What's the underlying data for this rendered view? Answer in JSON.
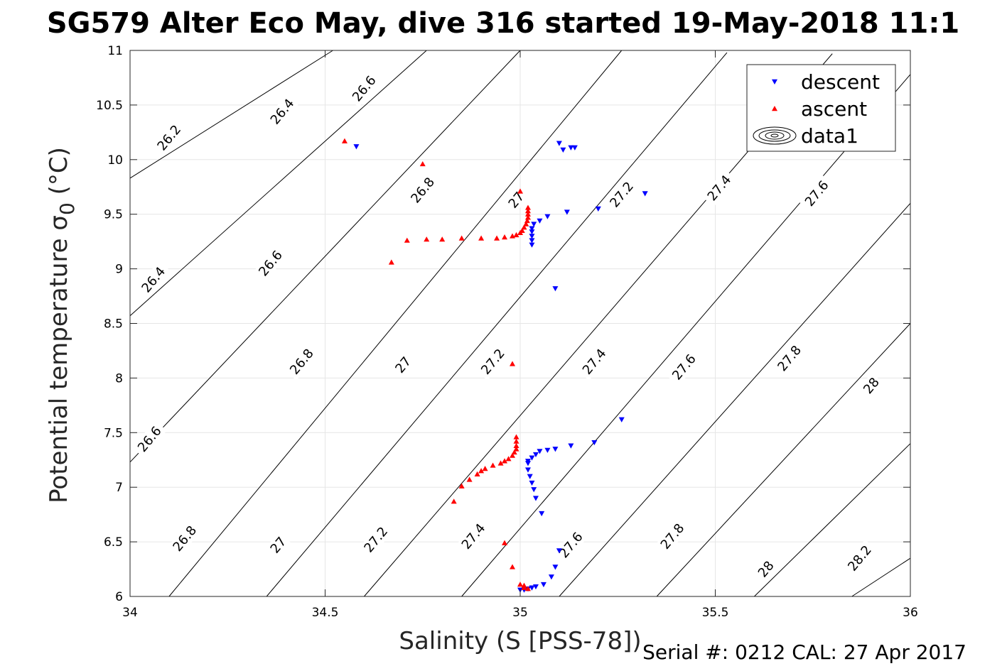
{
  "chart_data": {
    "type": "scatter",
    "title": "SG579 Alter Eco May, dive 316 started 19-May-2018 11:1",
    "xlabel": "Salinity (S [PSS-78])",
    "ylabel_main": "Potential temperature σ",
    "ylabel_sub": "0",
    "ylabel_unit": "(°C)",
    "footer": "Serial #: 0212  CAL: 27 Apr 2017",
    "xlim": [
      34,
      36
    ],
    "ylim": [
      6,
      11
    ],
    "xticks": [
      34,
      34.5,
      35,
      35.5,
      36
    ],
    "xtick_labels": [
      "34",
      "34.5",
      "35",
      "35.5",
      "36"
    ],
    "yticks": [
      6,
      6.5,
      7,
      7.5,
      8,
      8.5,
      9,
      9.5,
      10,
      10.5,
      11
    ],
    "ytick_labels": [
      "6",
      "6.5",
      "7",
      "7.5",
      "8",
      "8.5",
      "9",
      "9.5",
      "10",
      "10.5",
      "11"
    ],
    "grid": true,
    "legend_placement": "top-right",
    "legend": [
      {
        "name": "descent",
        "marker": "triangle-down",
        "color": "#0000ff"
      },
      {
        "name": "ascent",
        "marker": "triangle-up",
        "color": "#ff0000"
      },
      {
        "name": "data1",
        "marker": "contour",
        "color": "#000000"
      }
    ],
    "contours": {
      "levels": [
        26.2,
        26.4,
        26.6,
        26.8,
        27.0,
        27.2,
        27.4,
        27.6,
        27.8,
        28.0,
        28.2
      ],
      "lines": [
        {
          "level": 26.2,
          "points": [
            [
              34,
              9.83
            ],
            [
              34.52,
              11.0
            ]
          ]
        },
        {
          "level": 26.4,
          "points": [
            [
              34,
              8.57
            ],
            [
              34.76,
              11.0
            ]
          ]
        },
        {
          "level": 26.6,
          "points": [
            [
              34,
              7.23
            ],
            [
              35.0,
              11.0
            ]
          ]
        },
        {
          "level": 26.8,
          "points": [
            [
              34.1,
              6.0
            ],
            [
              35.26,
              11.0
            ]
          ]
        },
        {
          "level": 27.0,
          "points": [
            [
              34.35,
              6.0
            ],
            [
              35.53,
              10.98
            ]
          ]
        },
        {
          "level": 27.2,
          "points": [
            [
              34.6,
              6.0
            ],
            [
              35.8,
              10.97
            ]
          ]
        },
        {
          "level": 27.4,
          "points": [
            [
              34.85,
              6.0
            ],
            [
              36.0,
              10.78
            ]
          ]
        },
        {
          "level": 27.6,
          "points": [
            [
              35.1,
              6.0
            ],
            [
              36.0,
              9.6
            ]
          ]
        },
        {
          "level": 27.8,
          "points": [
            [
              35.35,
              6.0
            ],
            [
              36.0,
              8.5
            ]
          ]
        },
        {
          "level": 28.0,
          "points": [
            [
              35.6,
              6.0
            ],
            [
              36.0,
              7.4
            ]
          ]
        },
        {
          "level": 28.2,
          "points": [
            [
              35.85,
              6.0
            ],
            [
              36.0,
              6.35
            ]
          ]
        }
      ],
      "labels": [
        {
          "text": "26.2",
          "x": 34.1,
          "y": 10.2
        },
        {
          "text": "26.4",
          "x": 34.39,
          "y": 10.44
        },
        {
          "text": "26.6",
          "x": 34.6,
          "y": 10.65
        },
        {
          "text": "26.8",
          "x": 34.75,
          "y": 9.72
        },
        {
          "text": "27",
          "x": 34.99,
          "y": 9.63
        },
        {
          "text": "27.2",
          "x": 35.26,
          "y": 9.68
        },
        {
          "text": "27.4",
          "x": 35.51,
          "y": 9.74
        },
        {
          "text": "27.6",
          "x": 35.76,
          "y": 9.69
        },
        {
          "text": "26.4",
          "x": 34.06,
          "y": 8.9
        },
        {
          "text": "26.6",
          "x": 34.36,
          "y": 9.05
        },
        {
          "text": "26.8",
          "x": 34.44,
          "y": 8.15
        },
        {
          "text": "27",
          "x": 34.7,
          "y": 8.12
        },
        {
          "text": "27.2",
          "x": 34.93,
          "y": 8.15
        },
        {
          "text": "27.4",
          "x": 35.19,
          "y": 8.15
        },
        {
          "text": "27.6",
          "x": 35.42,
          "y": 8.1
        },
        {
          "text": "27.8",
          "x": 35.69,
          "y": 8.18
        },
        {
          "text": "28",
          "x": 35.9,
          "y": 7.93
        },
        {
          "text": "26.6",
          "x": 34.05,
          "y": 7.44
        },
        {
          "text": "26.8",
          "x": 34.14,
          "y": 6.53
        },
        {
          "text": "27",
          "x": 34.38,
          "y": 6.47
        },
        {
          "text": "27.2",
          "x": 34.63,
          "y": 6.52
        },
        {
          "text": "27.4",
          "x": 34.88,
          "y": 6.55
        },
        {
          "text": "27.6",
          "x": 35.13,
          "y": 6.47
        },
        {
          "text": "27.8",
          "x": 35.39,
          "y": 6.55
        },
        {
          "text": "28",
          "x": 35.63,
          "y": 6.25
        },
        {
          "text": "28.2",
          "x": 35.87,
          "y": 6.35
        }
      ]
    },
    "series": [
      {
        "name": "descent",
        "marker": "triangle-down",
        "color": "#0000ff",
        "points": [
          [
            34.58,
            10.12
          ],
          [
            35.1,
            10.15
          ],
          [
            35.11,
            10.09
          ],
          [
            35.13,
            10.11
          ],
          [
            35.14,
            10.11
          ],
          [
            35.32,
            9.69
          ],
          [
            35.2,
            9.55
          ],
          [
            35.12,
            9.52
          ],
          [
            35.07,
            9.48
          ],
          [
            35.05,
            9.44
          ],
          [
            35.035,
            9.41
          ],
          [
            35.03,
            9.37
          ],
          [
            35.03,
            9.34
          ],
          [
            35.03,
            9.3
          ],
          [
            35.03,
            9.26
          ],
          [
            35.03,
            9.22
          ],
          [
            35.09,
            8.82
          ],
          [
            35.26,
            7.62
          ],
          [
            35.19,
            7.41
          ],
          [
            35.13,
            7.38
          ],
          [
            35.09,
            7.35
          ],
          [
            35.07,
            7.34
          ],
          [
            35.05,
            7.33
          ],
          [
            35.04,
            7.3
          ],
          [
            35.03,
            7.27
          ],
          [
            35.02,
            7.24
          ],
          [
            35.02,
            7.22
          ],
          [
            35.02,
            7.16
          ],
          [
            35.025,
            7.1
          ],
          [
            35.03,
            7.04
          ],
          [
            35.035,
            6.98
          ],
          [
            35.04,
            6.9
          ],
          [
            35.055,
            6.76
          ],
          [
            35.1,
            6.42
          ],
          [
            35.09,
            6.27
          ],
          [
            35.08,
            6.18
          ],
          [
            35.06,
            6.11
          ],
          [
            35.04,
            6.09
          ],
          [
            35.03,
            6.08
          ],
          [
            35.02,
            6.07
          ],
          [
            35.01,
            6.06
          ],
          [
            35.0,
            6.06
          ]
        ]
      },
      {
        "name": "ascent",
        "marker": "triangle-up",
        "color": "#ff0000",
        "points": [
          [
            34.55,
            10.17
          ],
          [
            34.75,
            9.96
          ],
          [
            35.0,
            9.71
          ],
          [
            35.02,
            9.56
          ],
          [
            35.02,
            9.53
          ],
          [
            35.02,
            9.5
          ],
          [
            35.02,
            9.47
          ],
          [
            35.018,
            9.44
          ],
          [
            35.015,
            9.41
          ],
          [
            35.01,
            9.38
          ],
          [
            35.005,
            9.35
          ],
          [
            35.0,
            9.33
          ],
          [
            34.99,
            9.31
          ],
          [
            34.98,
            9.3
          ],
          [
            34.96,
            9.29
          ],
          [
            34.94,
            9.28
          ],
          [
            34.9,
            9.28
          ],
          [
            34.85,
            9.28
          ],
          [
            34.8,
            9.27
          ],
          [
            34.76,
            9.27
          ],
          [
            34.71,
            9.26
          ],
          [
            34.67,
            9.06
          ],
          [
            34.98,
            8.13
          ],
          [
            34.99,
            7.46
          ],
          [
            34.99,
            7.42
          ],
          [
            34.99,
            7.38
          ],
          [
            34.99,
            7.35
          ],
          [
            34.985,
            7.32
          ],
          [
            34.98,
            7.29
          ],
          [
            34.97,
            7.26
          ],
          [
            34.96,
            7.24
          ],
          [
            34.95,
            7.22
          ],
          [
            34.93,
            7.2
          ],
          [
            34.91,
            7.17
          ],
          [
            34.9,
            7.15
          ],
          [
            34.89,
            7.12
          ],
          [
            34.87,
            7.07
          ],
          [
            34.85,
            7.01
          ],
          [
            34.83,
            6.87
          ],
          [
            34.96,
            6.49
          ],
          [
            34.98,
            6.27
          ],
          [
            35.0,
            6.11
          ],
          [
            35.01,
            6.1
          ],
          [
            35.01,
            6.08
          ],
          [
            35.02,
            6.07
          ]
        ]
      }
    ]
  }
}
